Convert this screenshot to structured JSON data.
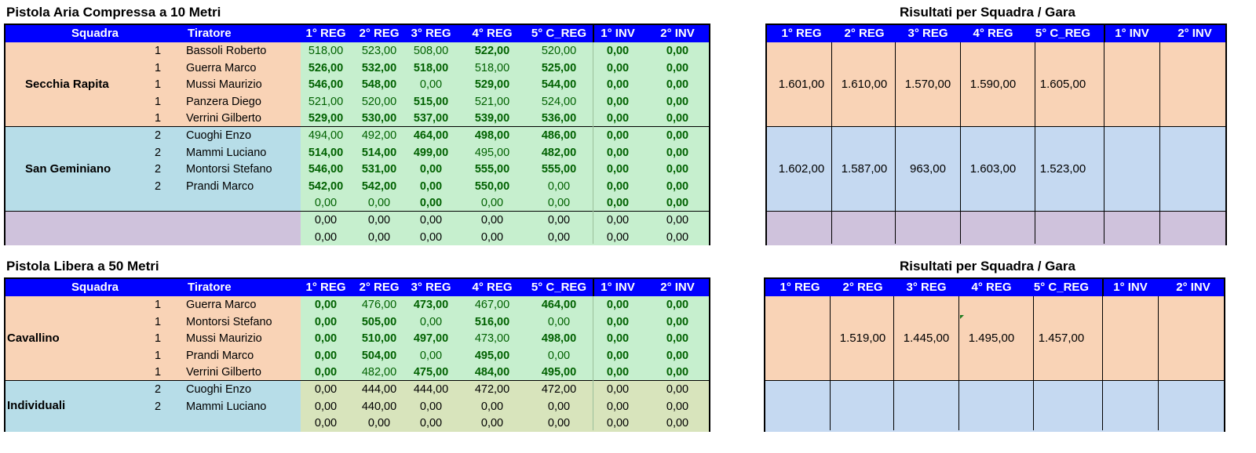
{
  "colors": {
    "header": "#0000ff",
    "orange": "#f9d3b6",
    "blue": "#b7dde8",
    "purple": "#cfc2dc",
    "green": "#c6efce",
    "olive": "#d8e4bc",
    "rblue": "#c5d9f1",
    "bold_green": "#006100"
  },
  "section1": {
    "title": "Pistola Aria Compressa a 10 Metri",
    "headers": [
      "Squadra",
      "Tiratore",
      "1° REG",
      "2° REG",
      "3° REG",
      "4° REG",
      "5° C_REG",
      "1° INV",
      "2° INV"
    ],
    "groups": [
      {
        "team": "Secchia Rapita",
        "color": "orange",
        "rows": [
          {
            "n": "1",
            "name": "Bassoli Roberto",
            "v": [
              "518,00",
              "523,00",
              "508,00",
              "522,00",
              "520,00",
              "0,00",
              "0,00"
            ],
            "b": [
              0,
              0,
              0,
              1,
              0,
              1,
              1
            ]
          },
          {
            "n": "1",
            "name": "Guerra Marco",
            "v": [
              "526,00",
              "532,00",
              "518,00",
              "518,00",
              "525,00",
              "0,00",
              "0,00"
            ],
            "b": [
              1,
              1,
              1,
              0,
              1,
              1,
              1
            ]
          },
          {
            "n": "1",
            "name": "Mussi Maurizio",
            "v": [
              "546,00",
              "548,00",
              "0,00",
              "529,00",
              "544,00",
              "0,00",
              "0,00"
            ],
            "b": [
              1,
              1,
              0,
              1,
              1,
              1,
              1
            ]
          },
          {
            "n": "1",
            "name": "Panzera Diego",
            "v": [
              "521,00",
              "520,00",
              "515,00",
              "521,00",
              "524,00",
              "0,00",
              "0,00"
            ],
            "b": [
              0,
              0,
              1,
              0,
              0,
              1,
              1
            ]
          },
          {
            "n": "1",
            "name": "Verrini Gilberto",
            "v": [
              "529,00",
              "530,00",
              "537,00",
              "539,00",
              "536,00",
              "0,00",
              "0,00"
            ],
            "b": [
              1,
              1,
              1,
              1,
              1,
              1,
              1
            ]
          }
        ]
      },
      {
        "team": "San Geminiano",
        "color": "blue",
        "rows": [
          {
            "n": "2",
            "name": "Cuoghi Enzo",
            "v": [
              "494,00",
              "492,00",
              "464,00",
              "498,00",
              "486,00",
              "0,00",
              "0,00"
            ],
            "b": [
              0,
              0,
              1,
              1,
              1,
              1,
              1
            ]
          },
          {
            "n": "2",
            "name": "Mammi Luciano",
            "v": [
              "514,00",
              "514,00",
              "499,00",
              "495,00",
              "482,00",
              "0,00",
              "0,00"
            ],
            "b": [
              1,
              1,
              1,
              0,
              1,
              1,
              1
            ]
          },
          {
            "n": "2",
            "name": "Montorsi Stefano",
            "v": [
              "546,00",
              "531,00",
              "0,00",
              "555,00",
              "555,00",
              "0,00",
              "0,00"
            ],
            "b": [
              1,
              1,
              1,
              1,
              1,
              1,
              1
            ]
          },
          {
            "n": "2",
            "name": "Prandi Marco",
            "v": [
              "542,00",
              "542,00",
              "0,00",
              "550,00",
              "0,00",
              "0,00",
              "0,00"
            ],
            "b": [
              1,
              1,
              1,
              1,
              0,
              1,
              1
            ]
          },
          {
            "n": "",
            "name": "",
            "v": [
              "0,00",
              "0,00",
              "0,00",
              "0,00",
              "0,00",
              "0,00",
              "0,00"
            ],
            "b": [
              0,
              0,
              1,
              0,
              0,
              1,
              1
            ]
          }
        ]
      },
      {
        "team": "",
        "color": "purple",
        "rows": [
          {
            "n": "",
            "name": "",
            "v": [
              "0,00",
              "0,00",
              "0,00",
              "0,00",
              "0,00",
              "0,00",
              "0,00"
            ],
            "b": [
              0,
              0,
              0,
              0,
              0,
              0,
              0
            ],
            "k": 1
          },
          {
            "n": "",
            "name": "",
            "v": [
              "0,00",
              "0,00",
              "0,00",
              "0,00",
              "0,00",
              "0,00",
              "0,00"
            ],
            "b": [
              0,
              0,
              0,
              0,
              0,
              0,
              0
            ],
            "k": 1
          }
        ]
      }
    ],
    "results_title": "Risultati per Squadra / Gara",
    "results_headers": [
      "1° REG",
      "2° REG",
      "3° REG",
      "4° REG",
      "5° C_REG",
      "1° INV",
      "2° INV"
    ],
    "results": [
      [
        "1.601,00",
        "1.610,00",
        "1.570,00",
        "1.590,00",
        "1.605,00",
        "",
        ""
      ],
      [
        "1.602,00",
        "1.587,00",
        "963,00",
        "1.603,00",
        "1.523,00",
        "",
        ""
      ],
      [
        "",
        "",
        "",
        "",
        "",
        "",
        ""
      ]
    ]
  },
  "section2": {
    "title": "Pistola Libera a 50 Metri",
    "headers": [
      "Squadra",
      "Tiratore",
      "1° REG",
      "2° REG",
      "3° REG",
      "4° REG",
      "5° C_REG",
      "1° INV",
      "2° INV"
    ],
    "groups": [
      {
        "team": "Cavallino",
        "color": "orange",
        "rows": [
          {
            "n": "1",
            "name": "Guerra Marco",
            "v": [
              "0,00",
              "476,00",
              "473,00",
              "467,00",
              "464,00",
              "0,00",
              "0,00"
            ],
            "b": [
              1,
              0,
              1,
              0,
              1,
              1,
              1
            ]
          },
          {
            "n": "1",
            "name": "Montorsi Stefano",
            "v": [
              "0,00",
              "505,00",
              "0,00",
              "516,00",
              "0,00",
              "0,00",
              "0,00"
            ],
            "b": [
              1,
              1,
              0,
              1,
              0,
              1,
              1
            ]
          },
          {
            "n": "1",
            "name": "Mussi Maurizio",
            "v": [
              "0,00",
              "510,00",
              "497,00",
              "473,00",
              "498,00",
              "0,00",
              "0,00"
            ],
            "b": [
              1,
              1,
              1,
              0,
              1,
              1,
              1
            ]
          },
          {
            "n": "1",
            "name": "Prandi Marco",
            "v": [
              "0,00",
              "504,00",
              "0,00",
              "495,00",
              "0,00",
              "0,00",
              "0,00"
            ],
            "b": [
              1,
              1,
              0,
              1,
              0,
              1,
              1
            ]
          },
          {
            "n": "1",
            "name": "Verrini Gilberto",
            "v": [
              "0,00",
              "482,00",
              "475,00",
              "484,00",
              "495,00",
              "0,00",
              "0,00"
            ],
            "b": [
              1,
              0,
              1,
              1,
              1,
              1,
              1
            ]
          }
        ]
      },
      {
        "team": "Individuali",
        "color": "blue",
        "rows": [
          {
            "n": "2",
            "name": "Cuoghi Enzo",
            "v": [
              "0,00",
              "444,00",
              "444,00",
              "472,00",
              "472,00",
              "0,00",
              "0,00"
            ],
            "b": [
              0,
              0,
              0,
              0,
              0,
              0,
              0
            ],
            "k": 1
          },
          {
            "n": "2",
            "name": "Mammi Luciano",
            "v": [
              "0,00",
              "440,00",
              "0,00",
              "0,00",
              "0,00",
              "0,00",
              "0,00"
            ],
            "b": [
              0,
              0,
              0,
              0,
              0,
              0,
              0
            ],
            "k": 1
          },
          {
            "n": "",
            "name": "",
            "v": [
              "0,00",
              "0,00",
              "0,00",
              "0,00",
              "0,00",
              "0,00",
              "0,00"
            ],
            "b": [
              0,
              0,
              0,
              0,
              0,
              0,
              0
            ],
            "k": 1
          }
        ]
      }
    ],
    "results_title": "Risultati per Squadra / Gara",
    "results_headers": [
      "1° REG",
      "2° REG",
      "3° REG",
      "4° REG",
      "5° C_REG",
      "1° INV",
      "2° INV"
    ],
    "results": [
      [
        "",
        "1.519,00",
        "1.445,00",
        "1.495,00",
        "1.457,00",
        "",
        ""
      ],
      [
        "",
        "",
        "",
        "",
        "",
        "",
        ""
      ]
    ]
  }
}
